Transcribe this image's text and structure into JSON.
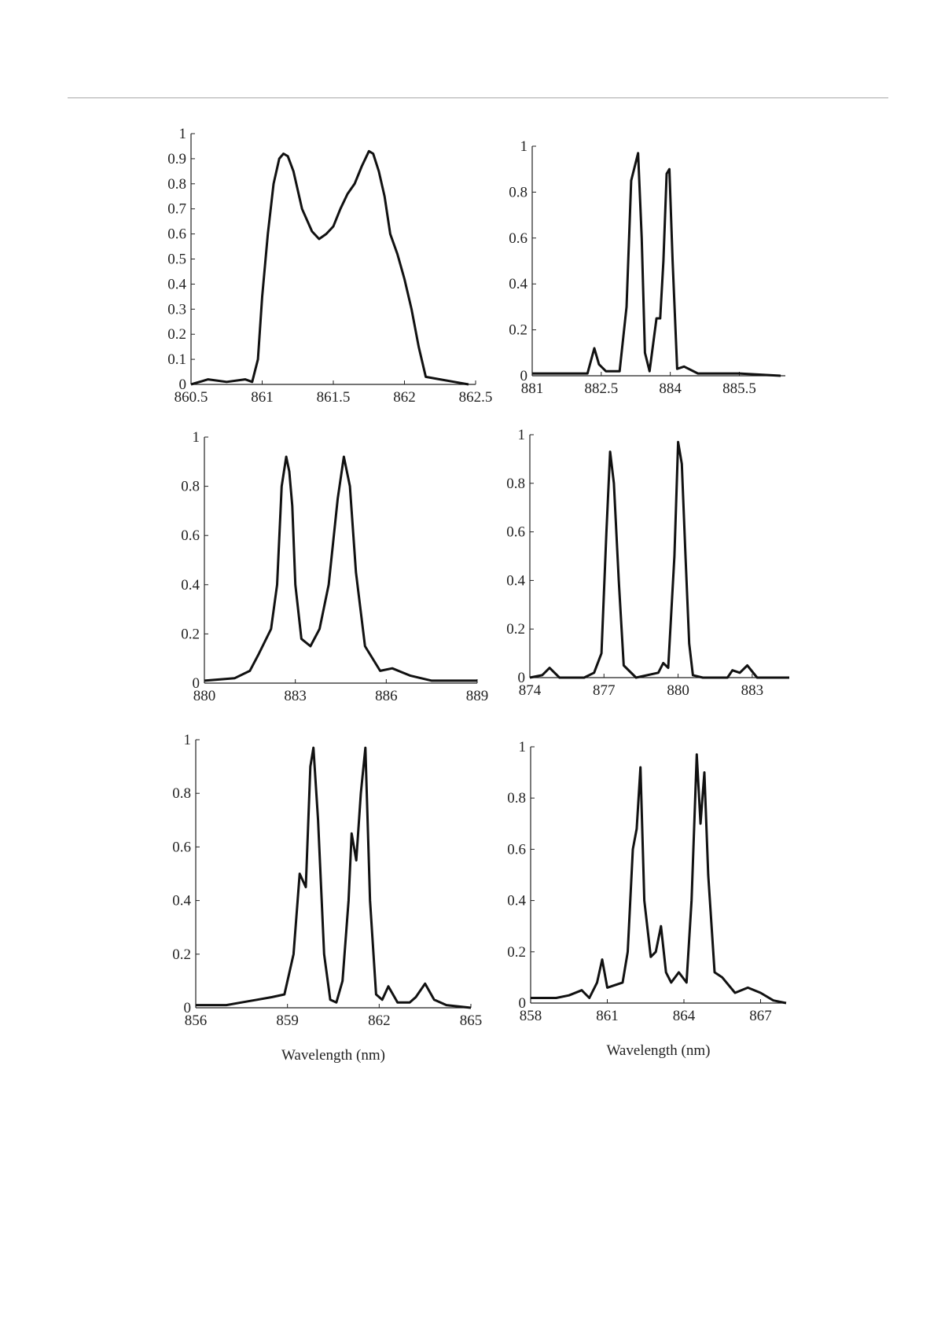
{
  "chart_data": [
    {
      "type": "line",
      "xlim": [
        860.5,
        862.5
      ],
      "ylim": [
        0,
        1
      ],
      "xticks": [
        "860.5",
        "861",
        "861.5",
        "862",
        "862.5"
      ],
      "yticks": [
        "0",
        "0.1",
        "0.2",
        "0.3",
        "0.4",
        "0.5",
        "0.6",
        "0.7",
        "0.8",
        "0.9",
        "1"
      ],
      "xlabel": "",
      "series": [
        {
          "x": [
            860.5,
            860.62,
            860.75,
            860.88,
            860.93,
            860.97,
            861.0,
            861.04,
            861.08,
            861.12,
            861.15,
            861.18,
            861.22,
            861.28,
            861.35,
            861.4,
            861.45,
            861.5,
            861.55,
            861.6,
            861.65,
            861.7,
            861.75,
            861.78,
            861.82,
            861.86,
            861.9,
            861.95,
            862.0,
            862.05,
            862.1,
            862.15,
            862.25,
            862.35,
            862.45
          ],
          "y": [
            0.0,
            0.02,
            0.01,
            0.02,
            0.01,
            0.1,
            0.35,
            0.6,
            0.8,
            0.9,
            0.92,
            0.91,
            0.85,
            0.7,
            0.61,
            0.58,
            0.6,
            0.63,
            0.7,
            0.76,
            0.8,
            0.87,
            0.93,
            0.92,
            0.85,
            0.75,
            0.6,
            0.52,
            0.42,
            0.3,
            0.15,
            0.03,
            0.02,
            0.01,
            0.0
          ]
        }
      ]
    },
    {
      "type": "line",
      "xlim": [
        881,
        886.5
      ],
      "ylim": [
        0,
        1
      ],
      "xticks": [
        "881",
        "882.5",
        "884",
        "885.5"
      ],
      "yticks": [
        "0",
        "0.2",
        "0.4",
        "0.6",
        "0.8",
        "1"
      ],
      "xlabel": "",
      "series": [
        {
          "x": [
            881,
            881.8,
            882.2,
            882.35,
            882.45,
            882.6,
            882.9,
            883.05,
            883.15,
            883.3,
            883.38,
            883.45,
            883.55,
            883.7,
            883.78,
            883.85,
            883.92,
            883.98,
            884.05,
            884.15,
            884.3,
            884.6,
            885.5,
            886.4
          ],
          "y": [
            0.01,
            0.01,
            0.01,
            0.12,
            0.05,
            0.02,
            0.02,
            0.3,
            0.85,
            0.97,
            0.6,
            0.1,
            0.02,
            0.25,
            0.25,
            0.5,
            0.88,
            0.9,
            0.5,
            0.03,
            0.04,
            0.01,
            0.01,
            0.0
          ]
        }
      ]
    },
    {
      "type": "line",
      "xlim": [
        880,
        889
      ],
      "ylim": [
        0,
        1
      ],
      "xticks": [
        "880",
        "883",
        "886",
        "889"
      ],
      "yticks": [
        "0",
        "0.2",
        "0.4",
        "0.6",
        "0.8",
        "1"
      ],
      "xlabel": "",
      "series": [
        {
          "x": [
            880,
            881.0,
            881.5,
            881.8,
            882.2,
            882.4,
            882.55,
            882.7,
            882.8,
            882.9,
            883.0,
            883.2,
            883.5,
            883.8,
            884.1,
            884.4,
            884.6,
            884.8,
            885.0,
            885.3,
            885.8,
            886.2,
            886.8,
            887.5,
            888.5,
            889
          ],
          "y": [
            0.01,
            0.02,
            0.05,
            0.12,
            0.22,
            0.4,
            0.8,
            0.92,
            0.86,
            0.72,
            0.4,
            0.18,
            0.15,
            0.22,
            0.4,
            0.75,
            0.92,
            0.8,
            0.45,
            0.15,
            0.05,
            0.06,
            0.03,
            0.01,
            0.01,
            0.01
          ]
        }
      ]
    },
    {
      "type": "line",
      "xlim": [
        874,
        884.5
      ],
      "ylim": [
        0,
        1
      ],
      "xticks": [
        "874",
        "877",
        "880",
        "883"
      ],
      "yticks": [
        "0",
        "0.2",
        "0.4",
        "0.6",
        "0.8",
        "1"
      ],
      "xlabel": "",
      "series": [
        {
          "x": [
            874,
            874.5,
            874.8,
            875.2,
            876.2,
            876.6,
            876.9,
            877.1,
            877.25,
            877.4,
            877.6,
            877.8,
            878.3,
            879.2,
            879.4,
            879.6,
            879.85,
            880.0,
            880.15,
            880.3,
            880.45,
            880.6,
            881.0,
            882.0,
            882.2,
            882.5,
            882.8,
            883.2,
            884.5
          ],
          "y": [
            0.0,
            0.01,
            0.04,
            0.0,
            0.0,
            0.02,
            0.1,
            0.6,
            0.93,
            0.8,
            0.4,
            0.05,
            0.0,
            0.02,
            0.06,
            0.04,
            0.5,
            0.97,
            0.88,
            0.5,
            0.14,
            0.01,
            0.0,
            0.0,
            0.03,
            0.02,
            0.05,
            0.0,
            0.0
          ]
        }
      ]
    },
    {
      "type": "line",
      "xlim": [
        856,
        865
      ],
      "ylim": [
        0,
        1
      ],
      "xticks": [
        "856",
        "859",
        "862",
        "865"
      ],
      "yticks": [
        "0",
        "0.2",
        "0.4",
        "0.6",
        "0.8",
        "1"
      ],
      "xlabel": "Wavelength (nm)",
      "series": [
        {
          "x": [
            856,
            857.0,
            857.5,
            858.0,
            858.5,
            858.9,
            859.2,
            859.4,
            859.6,
            859.75,
            859.85,
            860.0,
            860.2,
            860.4,
            860.6,
            860.8,
            861.0,
            861.1,
            861.25,
            861.4,
            861.55,
            861.7,
            861.9,
            862.1,
            862.3,
            862.6,
            863.0,
            863.2,
            863.5,
            863.8,
            864.2,
            865
          ],
          "y": [
            0.01,
            0.01,
            0.02,
            0.03,
            0.04,
            0.05,
            0.2,
            0.5,
            0.45,
            0.9,
            0.97,
            0.7,
            0.2,
            0.03,
            0.02,
            0.1,
            0.4,
            0.65,
            0.55,
            0.8,
            0.97,
            0.4,
            0.05,
            0.03,
            0.08,
            0.02,
            0.02,
            0.04,
            0.09,
            0.03,
            0.01,
            0.0
          ]
        }
      ]
    },
    {
      "type": "line",
      "xlim": [
        858,
        868
      ],
      "ylim": [
        0,
        1
      ],
      "xticks": [
        "858",
        "861",
        "864",
        "867"
      ],
      "yticks": [
        "0",
        "0.2",
        "0.4",
        "0.6",
        "0.8",
        "1"
      ],
      "xlabel": "Wavelength (nm)",
      "series": [
        {
          "x": [
            858,
            859.0,
            859.5,
            860.0,
            860.3,
            860.6,
            860.8,
            861.0,
            861.3,
            861.6,
            861.8,
            862.0,
            862.15,
            862.3,
            862.45,
            862.7,
            862.9,
            863.1,
            863.3,
            863.5,
            863.8,
            864.1,
            864.3,
            864.5,
            864.65,
            864.8,
            864.95,
            865.2,
            865.5,
            866.0,
            866.5,
            867.0,
            867.5,
            868
          ],
          "y": [
            0.02,
            0.02,
            0.03,
            0.05,
            0.02,
            0.08,
            0.17,
            0.06,
            0.07,
            0.08,
            0.2,
            0.6,
            0.68,
            0.92,
            0.4,
            0.18,
            0.2,
            0.3,
            0.12,
            0.08,
            0.12,
            0.08,
            0.4,
            0.97,
            0.7,
            0.9,
            0.5,
            0.12,
            0.1,
            0.04,
            0.06,
            0.04,
            0.01,
            0.0
          ]
        }
      ]
    }
  ]
}
